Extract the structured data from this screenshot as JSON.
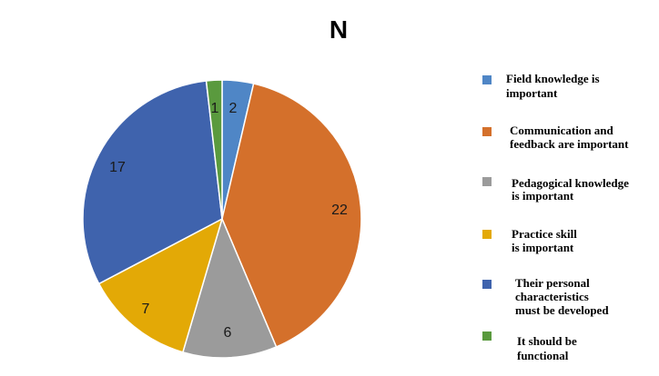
{
  "chart_data": {
    "type": "pie",
    "title": "N",
    "legend_position": "right",
    "categories": [
      "Field knowledge is important",
      "Communication and feedback are important",
      "Pedagogical knowledge is important",
      "Practice skill is important",
      "Their personal characteristics must be developed",
      "It should be functional"
    ],
    "legend_lines": [
      [
        "Field knowledge is",
        "important"
      ],
      [
        "Communication and",
        "feedback are important"
      ],
      [
        "Pedagogical knowledge",
        "is important"
      ],
      [
        "Practice skill",
        "is important"
      ],
      [
        "Their personal",
        "characteristics",
        "must be developed"
      ],
      [
        "It should be",
        "functional"
      ]
    ],
    "values": [
      2,
      22,
      6,
      7,
      17,
      1
    ],
    "colors": [
      "#4f86c6",
      "#d4702b",
      "#9b9b9b",
      "#e3a906",
      "#3f63ad",
      "#5a9a3e"
    ]
  }
}
